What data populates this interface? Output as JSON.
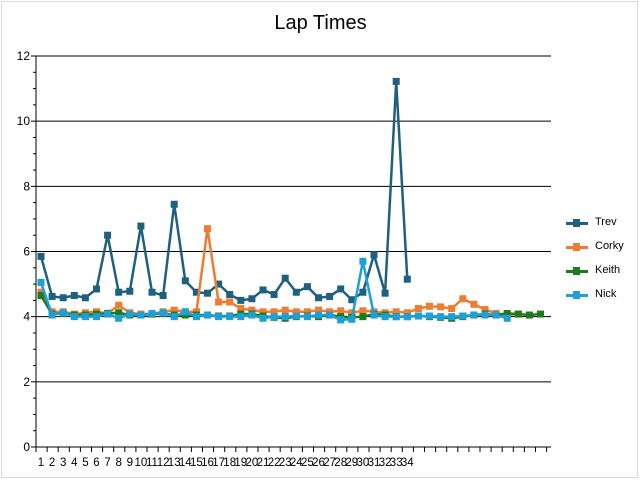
{
  "chart_data": {
    "type": "line",
    "title": "Lap Times",
    "xlabel": "",
    "ylabel": "",
    "ylim": [
      0,
      12
    ],
    "y_ticks": [
      0,
      2,
      4,
      6,
      8,
      10,
      12
    ],
    "x_tick_labels": [
      "1",
      "2",
      "3",
      "4",
      "5",
      "6",
      "7",
      "8",
      "9",
      "10",
      "11",
      "12",
      "13",
      "14",
      "15",
      "16",
      "17",
      "18",
      "19",
      "20",
      "21",
      "22",
      "23",
      "24",
      "25",
      "26",
      "27",
      "28",
      "29",
      "30",
      "31",
      "32",
      "33",
      "34"
    ],
    "grid": true,
    "legend_position": "right",
    "series": [
      {
        "name": "Trev",
        "color": "#1f5f7f",
        "values": [
          5.85,
          4.62,
          4.58,
          4.65,
          4.58,
          4.85,
          6.5,
          4.75,
          4.78,
          6.78,
          4.75,
          4.65,
          7.45,
          5.1,
          4.75,
          4.72,
          5.0,
          4.68,
          4.5,
          4.55,
          4.82,
          4.68,
          5.18,
          4.75,
          4.92,
          4.58,
          4.62,
          4.85,
          4.52,
          4.75,
          5.9,
          4.72,
          11.22,
          5.15
        ]
      },
      {
        "name": "Corky",
        "color": "#ed7d31",
        "values": [
          4.75,
          4.15,
          4.15,
          4.08,
          4.12,
          4.15,
          4.1,
          4.35,
          4.12,
          4.08,
          4.08,
          4.15,
          4.2,
          4.15,
          4.15,
          6.7,
          4.45,
          4.45,
          4.25,
          4.2,
          4.15,
          4.15,
          4.2,
          4.15,
          4.15,
          4.2,
          4.15,
          4.18,
          4.12,
          4.18,
          4.15,
          4.12,
          4.15,
          4.12,
          4.25,
          4.32,
          4.3,
          4.25,
          4.55,
          4.38,
          4.22,
          4.1,
          4.05,
          4.08
        ]
      },
      {
        "name": "Keith",
        "color": "#1e7a1e",
        "values": [
          4.65,
          4.08,
          4.1,
          4.05,
          4.05,
          4.08,
          4.1,
          4.12,
          4.05,
          4.05,
          4.08,
          4.1,
          4.05,
          4.05,
          4.05,
          4.05,
          4.02,
          4.02,
          4.08,
          4.08,
          4.02,
          3.98,
          3.95,
          4.0,
          4.02,
          4.0,
          4.05,
          4.0,
          3.98,
          4.0,
          4.08,
          4.05,
          4.0,
          4.0,
          4.02,
          4.0,
          3.98,
          3.95,
          4.0,
          4.05,
          4.08,
          4.05,
          4.1,
          4.08,
          4.05,
          4.08
        ]
      },
      {
        "name": "Nick",
        "color": "#1e9fd8",
        "values": [
          5.05,
          4.05,
          4.12,
          4.0,
          4.0,
          4.0,
          4.08,
          3.95,
          4.08,
          4.05,
          4.1,
          4.12,
          4.0,
          4.15,
          4.0,
          4.05,
          4.0,
          4.0,
          4.0,
          4.05,
          3.95,
          4.0,
          4.0,
          4.02,
          4.0,
          4.05,
          4.05,
          3.9,
          3.92,
          5.7,
          4.05,
          4.0,
          4.0,
          4.0,
          4.02,
          4.02,
          4.0,
          4.0,
          4.02,
          4.05,
          4.05,
          4.05,
          3.95
        ]
      }
    ]
  }
}
